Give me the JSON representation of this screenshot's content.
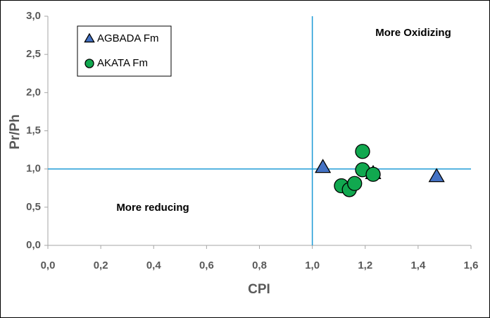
{
  "chart_data": {
    "type": "scatter",
    "x_label": "CPI",
    "y_label": "Pr/Ph",
    "xlim": [
      0,
      1.6
    ],
    "ylim": [
      0,
      3
    ],
    "xticks": [
      {
        "value": 0,
        "label": "0,0"
      },
      {
        "value": 0.2,
        "label": "0,2"
      },
      {
        "value": 0.4,
        "label": "0,4"
      },
      {
        "value": 0.6,
        "label": "0,6"
      },
      {
        "value": 0.8,
        "label": "0,8"
      },
      {
        "value": 1.0,
        "label": "1,0"
      },
      {
        "value": 1.2,
        "label": "1,2"
      },
      {
        "value": 1.4,
        "label": "1,4"
      },
      {
        "value": 1.6,
        "label": "1,6"
      }
    ],
    "yticks": [
      {
        "value": 0,
        "label": "0,0"
      },
      {
        "value": 0.5,
        "label": "0,5"
      },
      {
        "value": 1.0,
        "label": "1,0"
      },
      {
        "value": 1.5,
        "label": "1,5"
      },
      {
        "value": 2.0,
        "label": "2,0"
      },
      {
        "value": 2.5,
        "label": "2,5"
      },
      {
        "value": 3.0,
        "label": "3,0"
      }
    ],
    "vlines": [
      1.0
    ],
    "hlines": [
      1.0
    ],
    "line_color": "#1c9ad6",
    "annotations": [
      "More Oxidizing",
      "More reducing"
    ],
    "legend": "upper left",
    "series": [
      {
        "name": "AGBADA Fm",
        "color": "#4472c4",
        "marker": "triangle",
        "x": [
          1.04,
          1.47,
          1.23
        ],
        "values": [
          1.02,
          0.9,
          0.94
        ]
      },
      {
        "name": "AKATA Fm",
        "color": "#11a84f",
        "marker": "circle",
        "x": [
          1.19,
          1.19,
          1.23,
          1.11,
          1.14,
          1.16
        ],
        "values": [
          1.23,
          0.99,
          0.93,
          0.78,
          0.73,
          0.81
        ]
      }
    ]
  }
}
